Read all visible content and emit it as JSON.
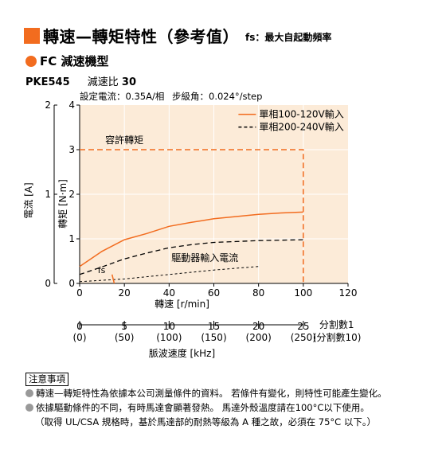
{
  "header": {
    "title": "轉速—轉矩特性（參考值）",
    "subtitle": "fs：最大自起動頻率"
  },
  "section": {
    "title": "FC 減速機型"
  },
  "model": {
    "name": "PKE545",
    "ratio_label": "減速比",
    "ratio_value": "30"
  },
  "spec": {
    "current": "設定電流：0.35A/相",
    "step_angle": "步級角：0.024°/step"
  },
  "colors": {
    "accent": "#f26c1f",
    "plot_bg": "#fcebd8",
    "grid": "#ffffff"
  },
  "chart_data": {
    "type": "line",
    "xlabel": "轉速 [r/min]",
    "ylabel": "轉矩 [N·m]",
    "y2label": "電流 [A]",
    "xlim": [
      0,
      120
    ],
    "ylim": [
      0,
      4
    ],
    "y2lim": [
      0,
      2
    ],
    "x_ticks": [
      "0",
      "20",
      "40",
      "60",
      "80",
      "100",
      "120"
    ],
    "y_ticks": [
      "0",
      "1",
      "2",
      "3",
      "4"
    ],
    "y2_ticks": [
      "0",
      "1",
      "2"
    ],
    "grid": true,
    "legend_position": "top-right",
    "series": [
      {
        "name": "單相100-120V輸入",
        "style": "solid",
        "color": "#f26c1f",
        "x": [
          0,
          10,
          20,
          30,
          40,
          50,
          60,
          70,
          80,
          90,
          100
        ],
        "y": [
          0.38,
          0.72,
          0.98,
          1.12,
          1.28,
          1.37,
          1.45,
          1.5,
          1.55,
          1.58,
          1.6
        ]
      },
      {
        "name": "單相200-240V輸入",
        "style": "dashed",
        "color": "#000000",
        "x": [
          0,
          10,
          20,
          30,
          40,
          50,
          60,
          70,
          80,
          90,
          100
        ],
        "y": [
          0.2,
          0.37,
          0.55,
          0.68,
          0.8,
          0.87,
          0.92,
          0.94,
          0.96,
          0.97,
          0.98
        ]
      },
      {
        "style": "dashed",
        "color": "#f26c1f",
        "x": [
          0,
          100,
          100
        ],
        "y": [
          3,
          3,
          0
        ]
      }
    ],
    "current_curve": {
      "style": "dashed",
      "color": "#000000",
      "x": [
        0,
        20,
        40,
        60,
        80
      ],
      "y_current": [
        0.02,
        0.05,
        0.1,
        0.15,
        0.19
      ]
    },
    "fs_mark": {
      "label": "fs",
      "x": [
        14.5,
        15.5
      ],
      "y": [
        0.2,
        0
      ]
    },
    "annotations": {
      "allowable_torque": "容許轉矩",
      "driver_current": "驅動器輸入電流"
    },
    "pulse_axis": {
      "label": "脈波速度 [kHz]",
      "ticks_top": [
        "0",
        "5",
        "10",
        "15",
        "20",
        "25"
      ],
      "ticks_bottom": [
        "(0)",
        "(50)",
        "(100)",
        "(150)",
        "(200)",
        "(250)"
      ],
      "division1": "分割數1",
      "division10": "(分割數10)"
    }
  },
  "notes": {
    "heading": "注意事項",
    "items": [
      "轉速—轉矩特性為依據本公司測量條件的資料。 若條件有變化，則特性可能產生變化。",
      "依據驅動條件的不同，有時馬達會顯著發熱。 馬達外殼溫度請在100°C以下使用。"
    ],
    "extra": "（取得 UL/CSA 規格時，基於馬達部的耐熱等級為 A 種之故，必須在 75°C 以下。）"
  }
}
